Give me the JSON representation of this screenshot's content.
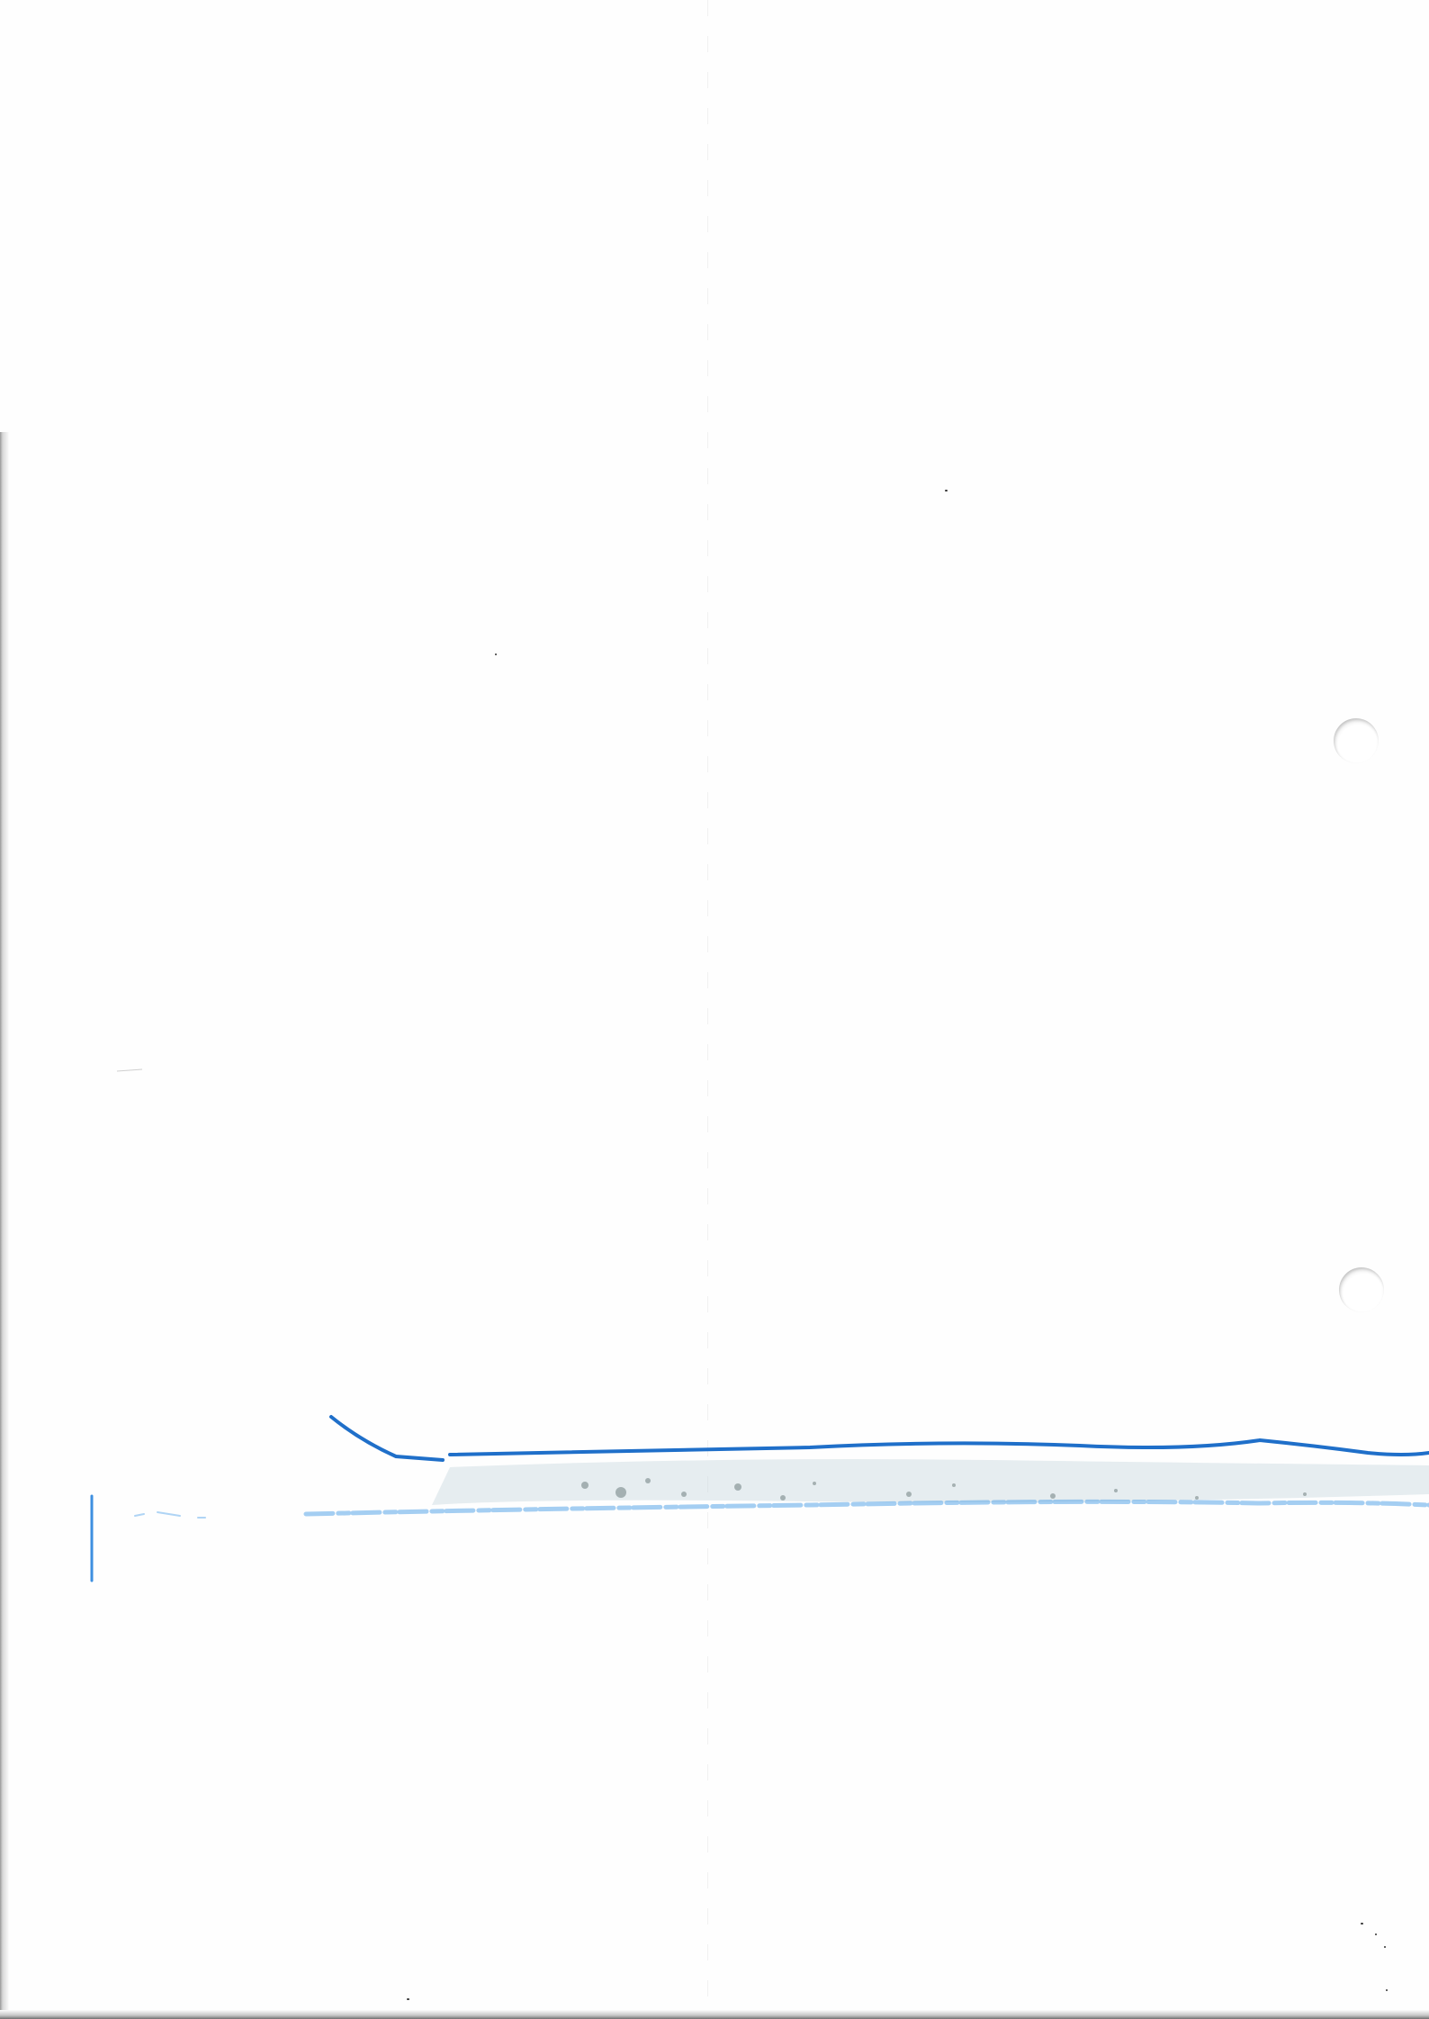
{
  "document": {
    "kind": "scanned blank page",
    "text_content": "",
    "marks": {
      "main_stroke_color": "#1f6fc9",
      "faint_stroke_color": "#5aa6e8",
      "smudge_color": "#7d8c8c"
    }
  }
}
